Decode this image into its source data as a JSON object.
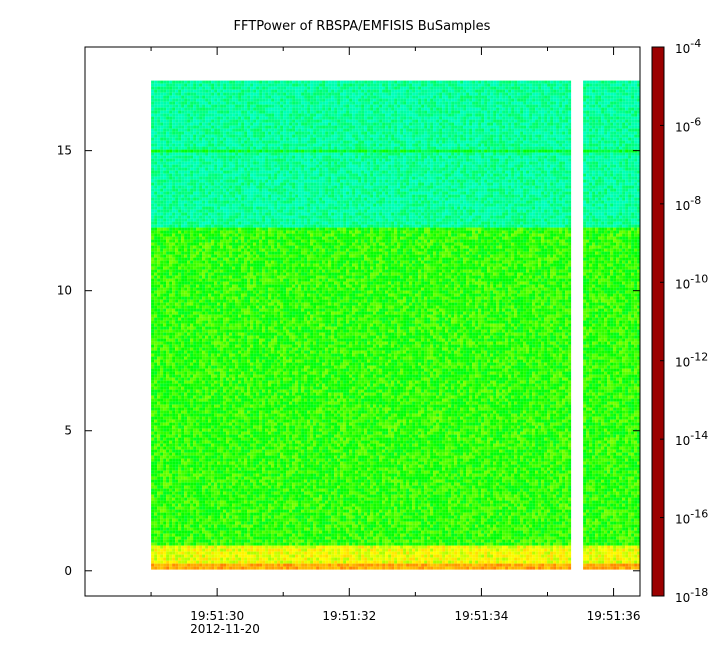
{
  "chart_data": {
    "type": "heatmap",
    "title": "FFTPower of RBSPA/EMFISIS  BuSamples",
    "xlabel": "",
    "ylabel": "",
    "x_axis": {
      "type": "time",
      "date_label": "2012-11-20",
      "ticks": [
        {
          "label": "19:51:30",
          "value_s": 30
        },
        {
          "label": "19:51:32",
          "value_s": 32
        },
        {
          "label": "19:51:34",
          "value_s": 34
        },
        {
          "label": "19:51:36",
          "value_s": 36
        }
      ],
      "minor_ticks_s": [
        29,
        31,
        33,
        35
      ],
      "range_s": [
        28.0,
        36.4
      ]
    },
    "y_axis": {
      "ticks": [
        0,
        5,
        10,
        15
      ],
      "ylim": [
        -0.9,
        18.7
      ]
    },
    "colorbar": {
      "scale": "log",
      "range": [
        1e-18,
        0.0001
      ],
      "tick_labels": [
        {
          "base": "10",
          "exp": "-4"
        },
        {
          "base": "10",
          "exp": "-6"
        },
        {
          "base": "10",
          "exp": "-8"
        },
        {
          "base": "10",
          "exp": "-10"
        },
        {
          "base": "10",
          "exp": "-12"
        },
        {
          "base": "10",
          "exp": "-14"
        },
        {
          "base": "10",
          "exp": "-16"
        },
        {
          "base": "10",
          "exp": "-18"
        }
      ],
      "colormap": [
        "#9b0000",
        "#ff0000",
        "#ff8c00",
        "#ffff00",
        "#00ff00",
        "#00ffb0",
        "#00ffff",
        "#0080ff",
        "#0000ff",
        "#00009b"
      ]
    },
    "data_extent": {
      "x_start_s": 29.0,
      "x_end_s": 36.4,
      "y_min": 0,
      "y_max": 17.5,
      "gap_s": [
        35.4,
        35.5
      ]
    },
    "power_bands": [
      {
        "y_from": 12.3,
        "y_to": 17.5,
        "log_power": -11.6
      },
      {
        "y_from": 0.9,
        "y_to": 12.3,
        "log_power": -10.0
      },
      {
        "y_from": 0.3,
        "y_to": 0.9,
        "log_power": -8.7
      },
      {
        "y_from": 0.0,
        "y_to": 0.3,
        "log_power": -7.5
      }
    ],
    "line_feature": {
      "y": 15.0,
      "log_power": -10.6
    }
  },
  "colors": {
    "background": "#ffffff",
    "axis": "#000000"
  }
}
